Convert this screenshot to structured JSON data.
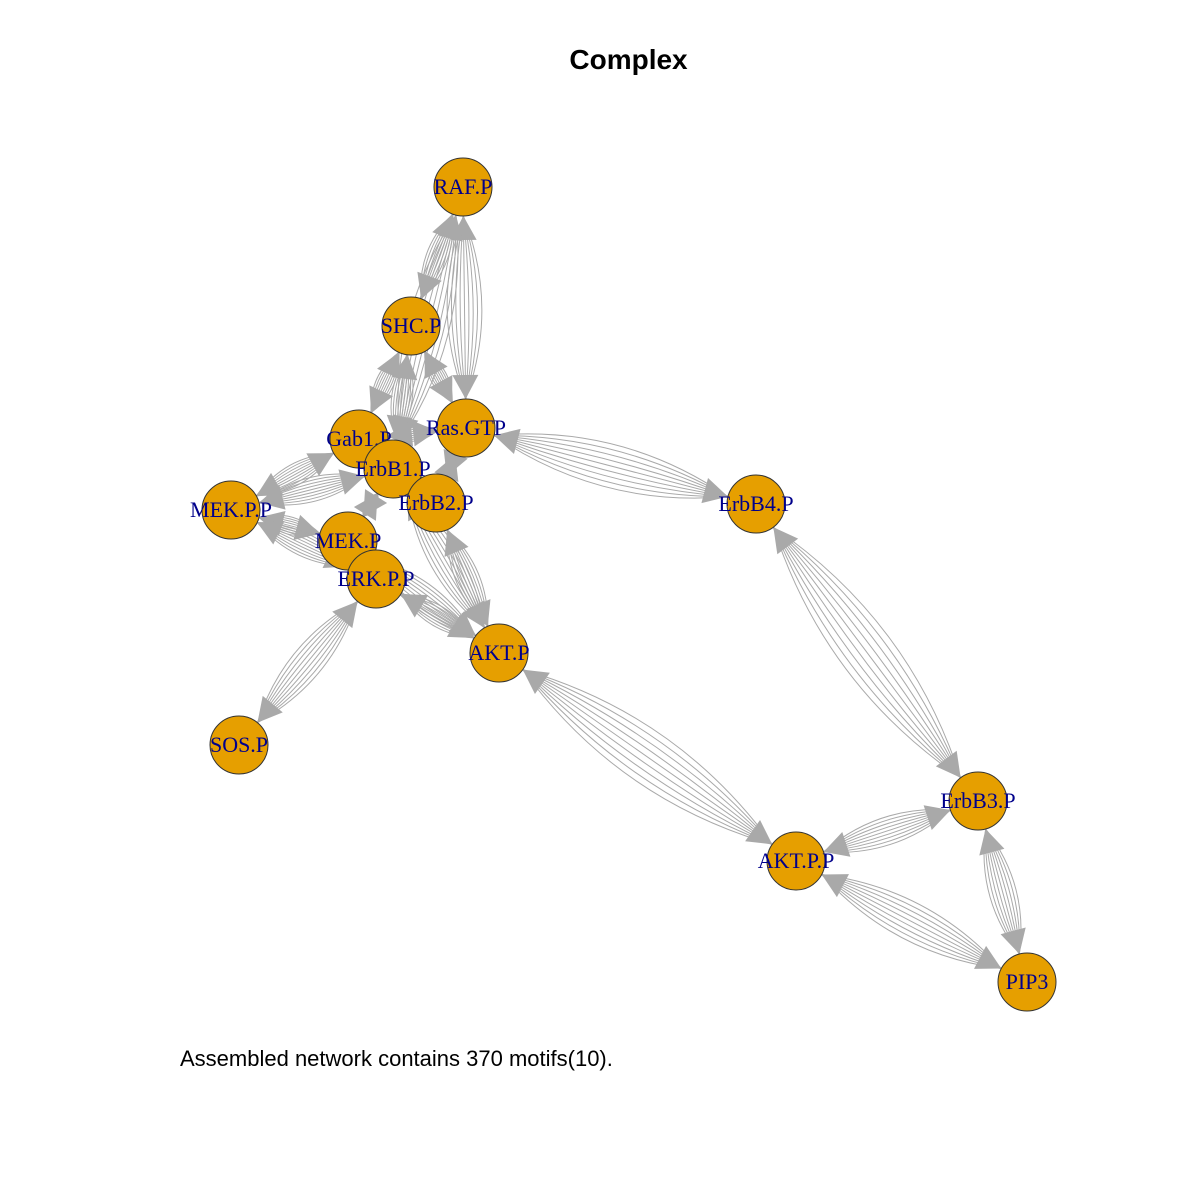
{
  "title": "Complex",
  "caption": "Assembled network contains 370 motifs(10).",
  "colors": {
    "node_fill": "#e69f00",
    "node_stroke": "#333333",
    "label": "#00008b",
    "edge": "#a9a9a9"
  },
  "nodes": [
    {
      "id": "RAF.P",
      "label": "RAF.P"
    },
    {
      "id": "SHC.P",
      "label": "SHC.P"
    },
    {
      "id": "Ras.GTP",
      "label": "Ras.GTP"
    },
    {
      "id": "Gab1.P",
      "label": "Gab1.P"
    },
    {
      "id": "ErbB1.P",
      "label": "ErbB1.P"
    },
    {
      "id": "ErbB2.P",
      "label": "ErbB2.P"
    },
    {
      "id": "MEK.P.P",
      "label": "MEK.P.P"
    },
    {
      "id": "MEK.P",
      "label": "MEK.P"
    },
    {
      "id": "ERK.P.P",
      "label": "ERK.P.P"
    },
    {
      "id": "AKT.P",
      "label": "AKT.P"
    },
    {
      "id": "SOS.P",
      "label": "SOS.P"
    },
    {
      "id": "ErbB4.P",
      "label": "ErbB4.P"
    },
    {
      "id": "ErbB3.P",
      "label": "ErbB3.P"
    },
    {
      "id": "AKT.P.P",
      "label": "AKT.P.P"
    },
    {
      "id": "PIP3",
      "label": "PIP3"
    }
  ],
  "edges": [
    {
      "from": "RAF.P",
      "to": "SHC.P"
    },
    {
      "from": "RAF.P",
      "to": "Ras.GTP"
    },
    {
      "from": "RAF.P",
      "to": "ErbB1.P"
    },
    {
      "from": "SHC.P",
      "to": "Ras.GTP"
    },
    {
      "from": "SHC.P",
      "to": "Gab1.P"
    },
    {
      "from": "SHC.P",
      "to": "ErbB1.P"
    },
    {
      "from": "Ras.GTP",
      "to": "ErbB4.P"
    },
    {
      "from": "Ras.GTP",
      "to": "ErbB2.P"
    },
    {
      "from": "Ras.GTP",
      "to": "Gab1.P"
    },
    {
      "from": "Gab1.P",
      "to": "MEK.P.P"
    },
    {
      "from": "ErbB1.P",
      "to": "MEK.P.P"
    },
    {
      "from": "ErbB1.P",
      "to": "MEK.P"
    },
    {
      "from": "ErbB2.P",
      "to": "AKT.P"
    },
    {
      "from": "ErbB1.P",
      "to": "AKT.P"
    },
    {
      "from": "MEK.P.P",
      "to": "MEK.P"
    },
    {
      "from": "MEK.P.P",
      "to": "ERK.P.P"
    },
    {
      "from": "MEK.P",
      "to": "AKT.P"
    },
    {
      "from": "ERK.P.P",
      "to": "AKT.P"
    },
    {
      "from": "ERK.P.P",
      "to": "SOS.P"
    },
    {
      "from": "AKT.P",
      "to": "AKT.P.P"
    },
    {
      "from": "ErbB4.P",
      "to": "ErbB3.P"
    },
    {
      "from": "ErbB3.P",
      "to": "AKT.P.P"
    },
    {
      "from": "ErbB3.P",
      "to": "PIP3"
    },
    {
      "from": "AKT.P.P",
      "to": "PIP3"
    }
  ]
}
